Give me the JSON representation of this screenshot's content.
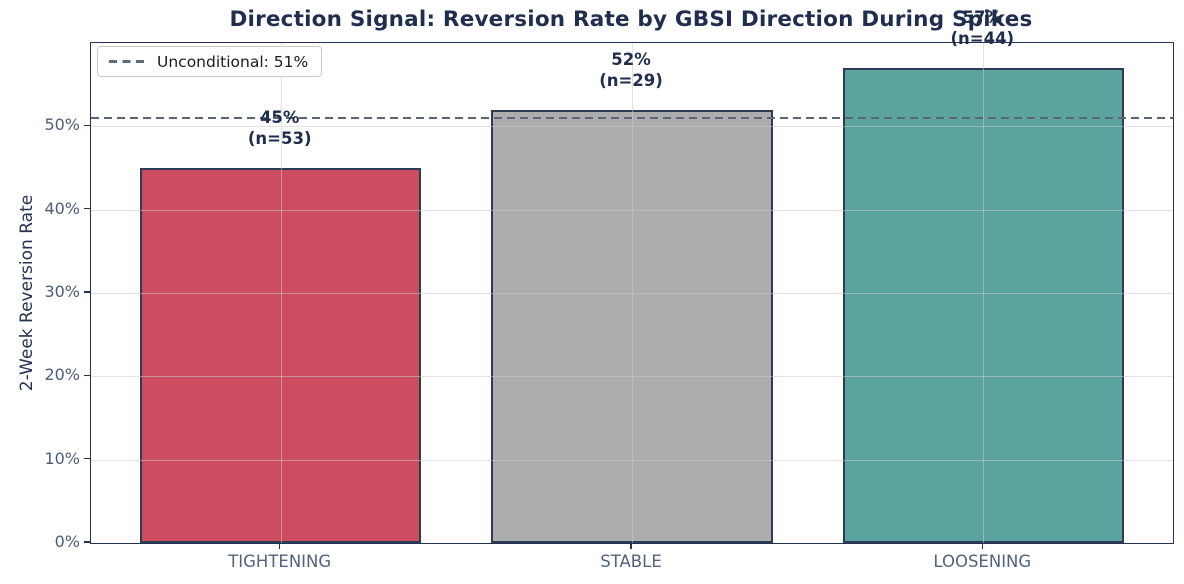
{
  "chart_data": {
    "type": "bar",
    "title": "Direction Signal: Reversion Rate by GBSI Direction During Spikes",
    "xlabel": "",
    "ylabel": "2-Week Reversion Rate",
    "categories": [
      "TIGHTENING",
      "STABLE",
      "LOOSENING"
    ],
    "values": [
      45,
      52,
      57
    ],
    "counts": [
      53,
      29,
      44
    ],
    "bar_labels": [
      {
        "line1": "45%",
        "line2": "(n=53)"
      },
      {
        "line1": "52%",
        "line2": "(n=29)"
      },
      {
        "line1": "57%",
        "line2": "(n=44)"
      }
    ],
    "bar_colors": [
      "#cd4c5f",
      "#adadad",
      "#5aa39e"
    ],
    "bar_edge_color": "#2e3b54",
    "ylim": [
      0,
      60
    ],
    "yticks": [
      {
        "value": 0,
        "label": "0%"
      },
      {
        "value": 10,
        "label": "10%"
      },
      {
        "value": 20,
        "label": "20%"
      },
      {
        "value": 30,
        "label": "30%"
      },
      {
        "value": 40,
        "label": "40%"
      },
      {
        "value": 50,
        "label": "50%"
      }
    ],
    "grid": true,
    "reference_line": {
      "value": 51,
      "label": "Unconditional: 51%",
      "style": "dashed",
      "color": "#5a6575"
    },
    "legend": {
      "position": "upper-left",
      "entries": [
        {
          "label": "Unconditional: 51%",
          "marker": "dashed-line"
        }
      ]
    }
  }
}
